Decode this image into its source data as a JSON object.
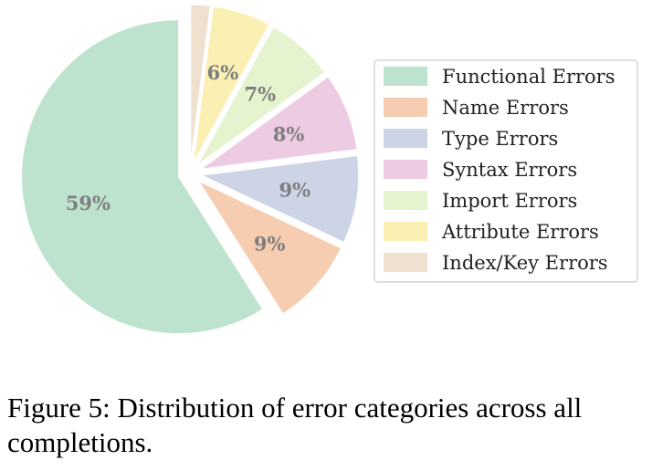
{
  "chart_data": {
    "type": "pie",
    "categories": [
      "Functional Errors",
      "Name Errors",
      "Type Errors",
      "Syntax Errors",
      "Import Errors",
      "Attribute Errors",
      "Index/Key Errors"
    ],
    "values": [
      59,
      9,
      9,
      8,
      7,
      6,
      2
    ],
    "value_labels": [
      "59%",
      "9%",
      "9%",
      "8%",
      "7%",
      "6%",
      ""
    ],
    "colors": [
      "#bde3cf",
      "#f6cdb0",
      "#cdd4e6",
      "#eccbe3",
      "#e6f3cf",
      "#fbf0b4",
      "#efe1cf"
    ],
    "legend_position": "right"
  },
  "caption": "Figure 5: Distribution of error categories across all completions."
}
